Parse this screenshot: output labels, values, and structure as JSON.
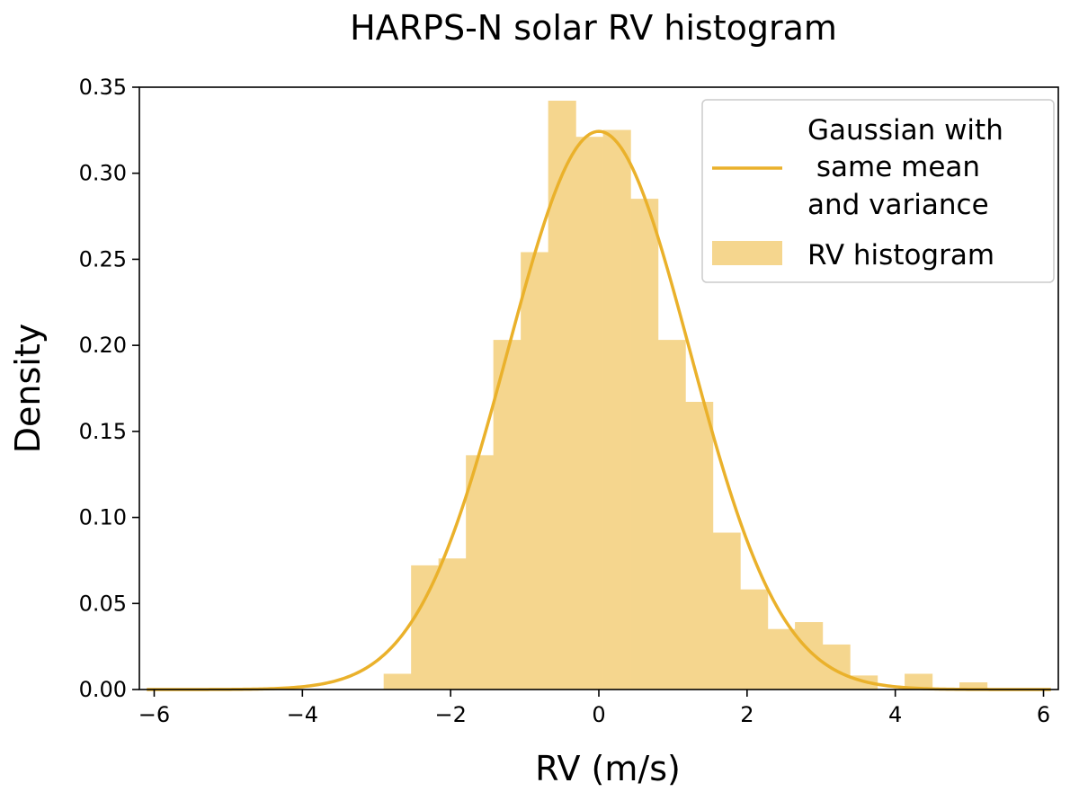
{
  "chart_data": {
    "type": "bar",
    "title": "HARPS-N solar RV histogram",
    "xlabel": "RV (m/s)",
    "ylabel": "Density",
    "xlim": [
      -6.2,
      6.2
    ],
    "ylim": [
      0,
      0.35
    ],
    "xticks": [
      -6,
      -4,
      -2,
      0,
      2,
      4,
      6
    ],
    "xtick_labels": [
      "−6",
      "−4",
      "−2",
      "0",
      "2",
      "4",
      "6"
    ],
    "yticks": [
      0,
      0.05,
      0.1,
      0.15,
      0.2,
      0.25,
      0.3,
      0.35
    ],
    "ytick_labels": [
      "0.00",
      "0.05",
      "0.10",
      "0.15",
      "0.20",
      "0.25",
      "0.30",
      "0.35"
    ],
    "grid": false,
    "legend_position": "top-right",
    "histogram": {
      "name": "RV histogram",
      "color": "#f5d68e",
      "bin_edges": [
        -2.9,
        -2.53,
        -2.16,
        -1.79,
        -1.42,
        -1.05,
        -0.68,
        -0.31,
        0.06,
        0.43,
        0.8,
        1.17,
        1.54,
        1.91,
        2.28,
        2.65,
        3.02,
        3.39,
        3.76,
        4.13,
        4.5,
        4.87,
        5.24
      ],
      "values": [
        0.009,
        0.072,
        0.076,
        0.136,
        0.203,
        0.254,
        0.342,
        0.321,
        0.325,
        0.285,
        0.203,
        0.167,
        0.091,
        0.058,
        0.035,
        0.039,
        0.026,
        0.008,
        0.0,
        0.009,
        0.0,
        0.004
      ]
    },
    "curve": {
      "name": "Gaussian with\n same mean\nand variance",
      "color": "#eab12b",
      "mean": 0.0,
      "std": 1.23
    }
  },
  "legend": {
    "curve_label_lines": [
      "Gaussian with",
      " same mean",
      "and variance"
    ],
    "histogram_label": "RV histogram"
  }
}
